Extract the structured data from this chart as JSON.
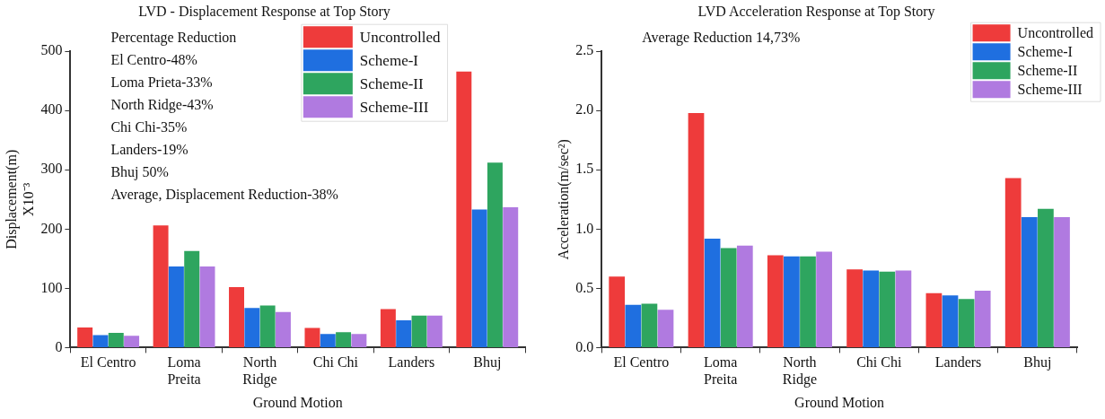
{
  "chart_data": [
    {
      "type": "bar",
      "title": "LVD - Displacement Response at Top Story",
      "xlabel": "Ground Motion",
      "ylabel": "Displacement(m)\nX10⁻³",
      "categories": [
        "El Centro",
        "Loma\nPreita",
        "North\nRidge",
        "Chi Chi",
        "Landers",
        "Bhuj"
      ],
      "series": [
        {
          "name": "Uncontrolled",
          "color": "#ee3b3b",
          "values": [
            34,
            206,
            102,
            33,
            65,
            466
          ]
        },
        {
          "name": "Scheme-I",
          "color": "#1f6fe0",
          "values": [
            21,
            137,
            67,
            23,
            46,
            233
          ]
        },
        {
          "name": "Scheme-II",
          "color": "#2ea55f",
          "values": [
            25,
            163,
            71,
            26,
            54,
            312
          ]
        },
        {
          "name": "Scheme-III",
          "color": "#b07ae0",
          "values": [
            20,
            137,
            60,
            23,
            54,
            237
          ]
        }
      ],
      "ylim": [
        0,
        500
      ],
      "yticks": [
        0,
        100,
        200,
        300,
        400,
        500
      ],
      "grid": false,
      "legend": "top right",
      "annotations": [
        "Percentage Reduction",
        "El Centro-48%",
        "Loma Prieta-33%",
        "North Ridge-43%",
        "Chi Chi-35%",
        "Landers-19%",
        "Bhuj 50%",
        "Average, Displacement Reduction-38%"
      ]
    },
    {
      "type": "bar",
      "title": "LVD Acceleration Response at Top Story",
      "xlabel": "Ground Motion",
      "ylabel": "Acceleration(m/sec²)",
      "categories": [
        "El Centro",
        "Loma\nPreita",
        "North\nRidge",
        "Chi Chi",
        "Landers",
        "Bhuj"
      ],
      "series": [
        {
          "name": "Uncontrolled",
          "color": "#ee3b3b",
          "values": [
            0.6,
            1.98,
            0.78,
            0.66,
            0.46,
            1.43
          ]
        },
        {
          "name": "Scheme-I",
          "color": "#1f6fe0",
          "values": [
            0.36,
            0.92,
            0.77,
            0.65,
            0.44,
            1.1
          ]
        },
        {
          "name": "Scheme-II",
          "color": "#2ea55f",
          "values": [
            0.37,
            0.84,
            0.77,
            0.64,
            0.41,
            1.17
          ]
        },
        {
          "name": "Scheme-III",
          "color": "#b07ae0",
          "values": [
            0.32,
            0.86,
            0.81,
            0.65,
            0.48,
            1.1
          ]
        }
      ],
      "ylim": [
        0,
        2.5
      ],
      "yticks": [
        {
          "value": 0,
          "label": "0.0"
        },
        {
          "value": 0.5,
          "label": "0.5"
        },
        {
          "value": 1,
          "label": "1.0"
        },
        {
          "value": 1.5,
          "label": "1.5"
        },
        {
          "value": 2,
          "label": "2.0"
        },
        {
          "value": 2.5,
          "label": "2.5"
        }
      ],
      "grid": false,
      "legend": "top right",
      "annotations": [
        "Average Reduction 14,73%"
      ]
    }
  ]
}
